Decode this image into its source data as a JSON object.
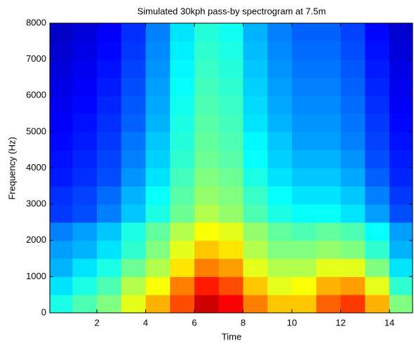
{
  "chart_data": {
    "type": "heatmap",
    "title": "Simulated 30kph pass-by spectrogram at 7.5m",
    "xlabel": "Time",
    "ylabel": "Frequency (Hz)",
    "xlim": [
      0.07,
      14.95
    ],
    "ylim": [
      0,
      8000
    ],
    "xticks": [
      2,
      4,
      6,
      8,
      10,
      12,
      14
    ],
    "yticks": [
      0,
      1000,
      2000,
      3000,
      4000,
      5000,
      6000,
      7000,
      8000
    ],
    "colormap": "jet",
    "clim": [
      0,
      1
    ],
    "x": [
      0.5,
      1.5,
      2.5,
      3.5,
      4.5,
      5.5,
      6.5,
      7.5,
      8.5,
      9.5,
      10.5,
      11.5,
      12.5,
      13.5,
      14.5
    ],
    "y": [
      250,
      750,
      1250,
      1750,
      2250,
      2750,
      3250,
      3750,
      4250,
      4750,
      5250,
      5750,
      6250,
      6750,
      7250,
      7750
    ],
    "z": [
      [
        0.4,
        0.45,
        0.5,
        0.6,
        0.7,
        0.8,
        0.92,
        0.88,
        0.75,
        0.68,
        0.68,
        0.78,
        0.82,
        0.7,
        0.5
      ],
      [
        0.35,
        0.4,
        0.45,
        0.55,
        0.62,
        0.75,
        0.85,
        0.8,
        0.68,
        0.6,
        0.62,
        0.7,
        0.72,
        0.6,
        0.42
      ],
      [
        0.3,
        0.35,
        0.4,
        0.48,
        0.55,
        0.65,
        0.75,
        0.72,
        0.6,
        0.55,
        0.55,
        0.6,
        0.6,
        0.5,
        0.35
      ],
      [
        0.28,
        0.3,
        0.35,
        0.42,
        0.5,
        0.6,
        0.68,
        0.65,
        0.55,
        0.5,
        0.5,
        0.52,
        0.5,
        0.42,
        0.3
      ],
      [
        0.25,
        0.28,
        0.32,
        0.4,
        0.47,
        0.55,
        0.62,
        0.6,
        0.52,
        0.47,
        0.45,
        0.47,
        0.45,
        0.38,
        0.28
      ],
      [
        0.18,
        0.2,
        0.25,
        0.32,
        0.4,
        0.48,
        0.55,
        0.52,
        0.45,
        0.4,
        0.38,
        0.38,
        0.35,
        0.28,
        0.2
      ],
      [
        0.17,
        0.19,
        0.23,
        0.3,
        0.38,
        0.46,
        0.52,
        0.5,
        0.43,
        0.38,
        0.35,
        0.35,
        0.32,
        0.25,
        0.18
      ],
      [
        0.15,
        0.17,
        0.2,
        0.27,
        0.35,
        0.44,
        0.5,
        0.48,
        0.4,
        0.35,
        0.32,
        0.32,
        0.29,
        0.22,
        0.16
      ],
      [
        0.14,
        0.16,
        0.19,
        0.25,
        0.33,
        0.42,
        0.48,
        0.46,
        0.38,
        0.33,
        0.3,
        0.3,
        0.27,
        0.2,
        0.15
      ],
      [
        0.13,
        0.15,
        0.18,
        0.24,
        0.32,
        0.41,
        0.47,
        0.45,
        0.37,
        0.32,
        0.28,
        0.28,
        0.25,
        0.19,
        0.14
      ],
      [
        0.12,
        0.14,
        0.17,
        0.22,
        0.3,
        0.4,
        0.46,
        0.44,
        0.35,
        0.3,
        0.27,
        0.27,
        0.24,
        0.18,
        0.13
      ],
      [
        0.11,
        0.13,
        0.16,
        0.21,
        0.29,
        0.39,
        0.45,
        0.43,
        0.34,
        0.29,
        0.26,
        0.26,
        0.23,
        0.17,
        0.12
      ],
      [
        0.1,
        0.12,
        0.15,
        0.2,
        0.28,
        0.38,
        0.44,
        0.42,
        0.33,
        0.28,
        0.25,
        0.25,
        0.22,
        0.16,
        0.11
      ],
      [
        0.09,
        0.11,
        0.14,
        0.19,
        0.27,
        0.37,
        0.43,
        0.41,
        0.32,
        0.27,
        0.24,
        0.24,
        0.21,
        0.15,
        0.1
      ],
      [
        0.08,
        0.1,
        0.13,
        0.18,
        0.26,
        0.36,
        0.42,
        0.4,
        0.31,
        0.26,
        0.23,
        0.23,
        0.2,
        0.14,
        0.09
      ],
      [
        0.07,
        0.09,
        0.12,
        0.17,
        0.25,
        0.35,
        0.41,
        0.39,
        0.3,
        0.25,
        0.22,
        0.22,
        0.19,
        0.13,
        0.08
      ]
    ]
  }
}
